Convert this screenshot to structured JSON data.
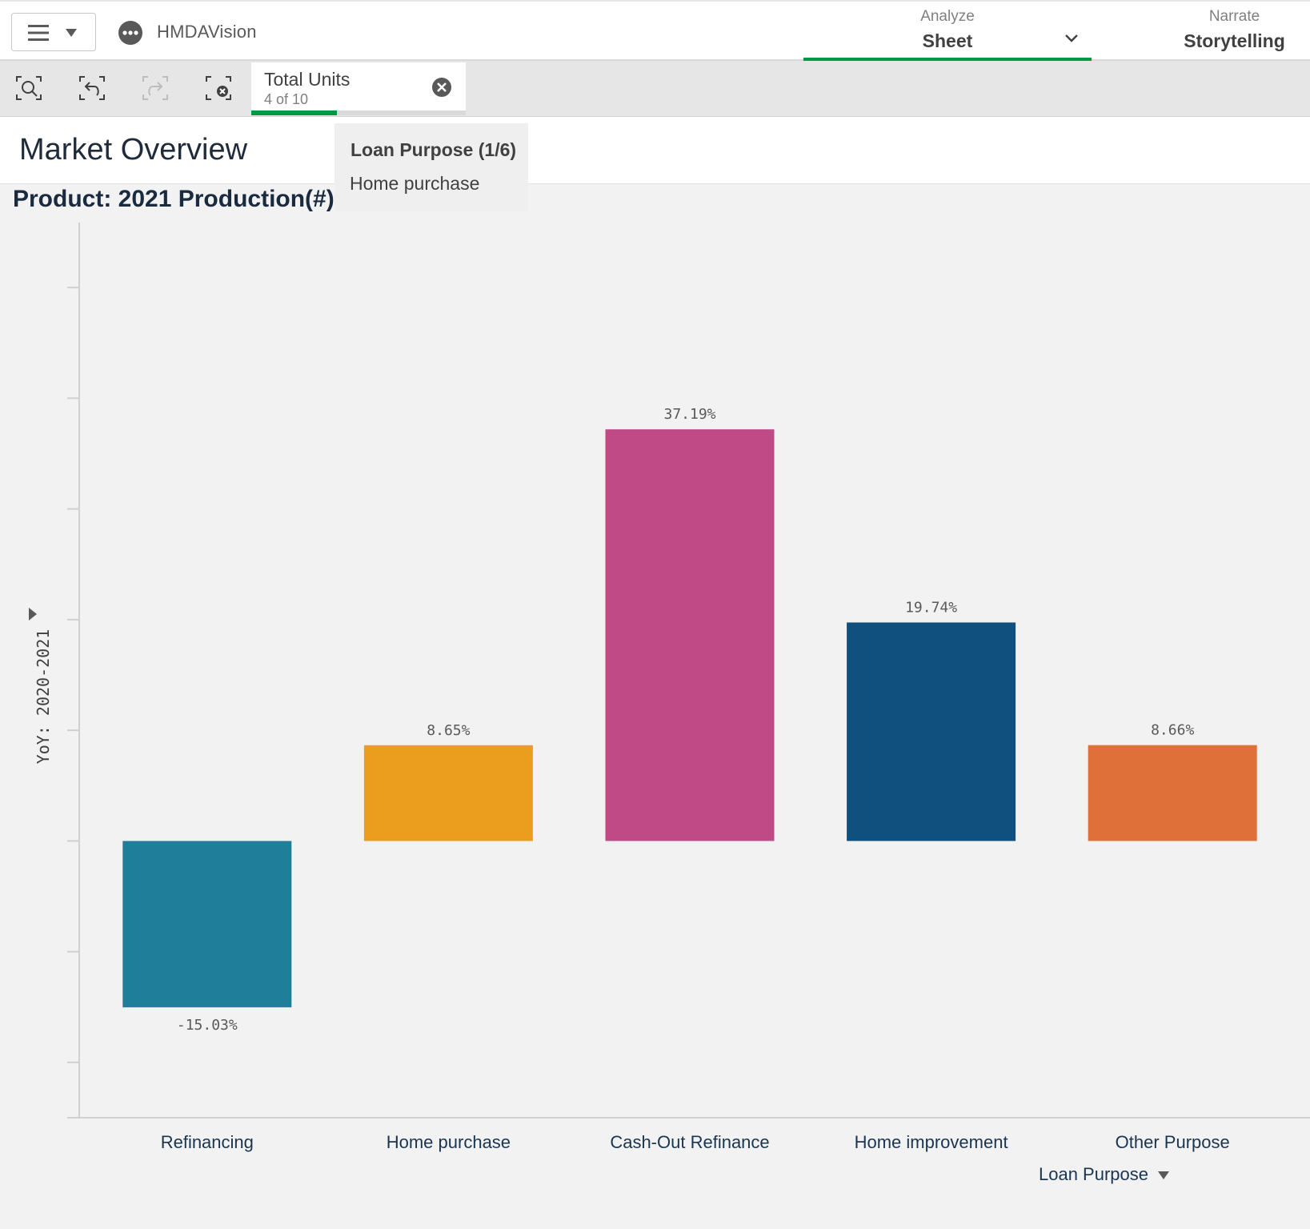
{
  "app": {
    "name": "HMDAVision"
  },
  "nav": {
    "analyze_small": "Analyze",
    "analyze_big": "Sheet",
    "narrate_small": "Narrate",
    "narrate_big": "Storytelling"
  },
  "selection": {
    "title": "Total Units",
    "subtitle": "4 of 10",
    "progress": 0.4
  },
  "sheet": {
    "title": "Market Overview"
  },
  "popover": {
    "title": "Loan Purpose (1/6)",
    "value": "Home purchase"
  },
  "chart": {
    "title": "Product: 2021 Production(#)"
  },
  "chart_data": {
    "type": "bar",
    "title": "Product: 2021 Production(#)",
    "xlabel": "Loan Purpose",
    "ylabel": "YoY: 2020-2021",
    "categories": [
      "Refinancing",
      "Home purchase",
      "Cash-Out Refinance",
      "Home improvement",
      "Other Purpose"
    ],
    "values": [
      -15.03,
      8.65,
      37.19,
      19.74,
      8.66
    ],
    "labels": [
      "-15.03%",
      "8.65%",
      "37.19%",
      "19.74%",
      "8.66%"
    ],
    "colors": [
      "#1f7f9b",
      "#eb9e1d",
      "#c04a85",
      "#10507e",
      "#e0703a"
    ],
    "ylim": [
      -25,
      55
    ],
    "grid": false,
    "axis_tick_labels_shown": false
  }
}
